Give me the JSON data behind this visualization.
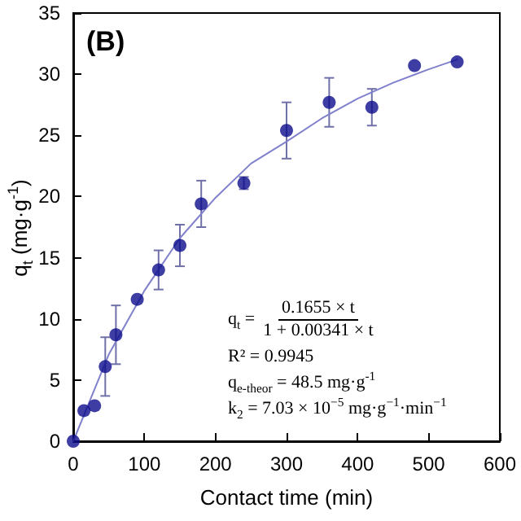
{
  "chart_data": {
    "type": "scatter",
    "title": "(B)",
    "xlabel": "Contact time (min)",
    "ylabel": "q$_{t}$ (mg·g$^{-1}$)",
    "xlim": [
      0,
      600
    ],
    "xticks": [
      0,
      100,
      200,
      300,
      400,
      500,
      600
    ],
    "ylim": [
      0,
      35
    ],
    "yticks": [
      0,
      5,
      10,
      15,
      20,
      25,
      30,
      35
    ],
    "grid": false,
    "marker": "circle",
    "annotations": [
      "q$_{t}$ =",
      "0.1655 × t",
      "1 + 0.00341 × t",
      "R² = 0.9945",
      "q$_{e-theor}$ = 48.5 mg·g$^{-1}$",
      "k$_{2}$ = 7.03 × 10$^{−5}$ mg·g$^{−1}$·min$^{−1}$"
    ],
    "series": [
      {
        "color": "#0d0d8c",
        "x": [
          0,
          15,
          30,
          45,
          60,
          90,
          120,
          150,
          180,
          240,
          300,
          360,
          420,
          480,
          540
        ],
        "values": [
          0,
          2.5,
          2.9,
          6.1,
          8.7,
          11.6,
          14.0,
          16.0,
          19.4,
          21.1,
          25.4,
          27.7,
          27.3,
          30.7,
          31.0
        ],
        "errors": [
          null,
          null,
          null,
          2.4,
          2.4,
          null,
          1.6,
          1.7,
          1.9,
          0.5,
          2.3,
          2.0,
          1.5,
          null,
          null
        ]
      },
      {
        "type": "line",
        "color": "#8080cc",
        "marker": "none",
        "line_style": "solid",
        "x": [
          0,
          50,
          100,
          150,
          200,
          250,
          300,
          350,
          400,
          450,
          500,
          540
        ],
        "values": [
          0,
          7.1,
          12.3,
          16.6,
          19.9,
          22.7,
          24.5,
          26.4,
          28.0,
          29.3,
          30.4,
          31.2
        ]
      }
    ]
  }
}
